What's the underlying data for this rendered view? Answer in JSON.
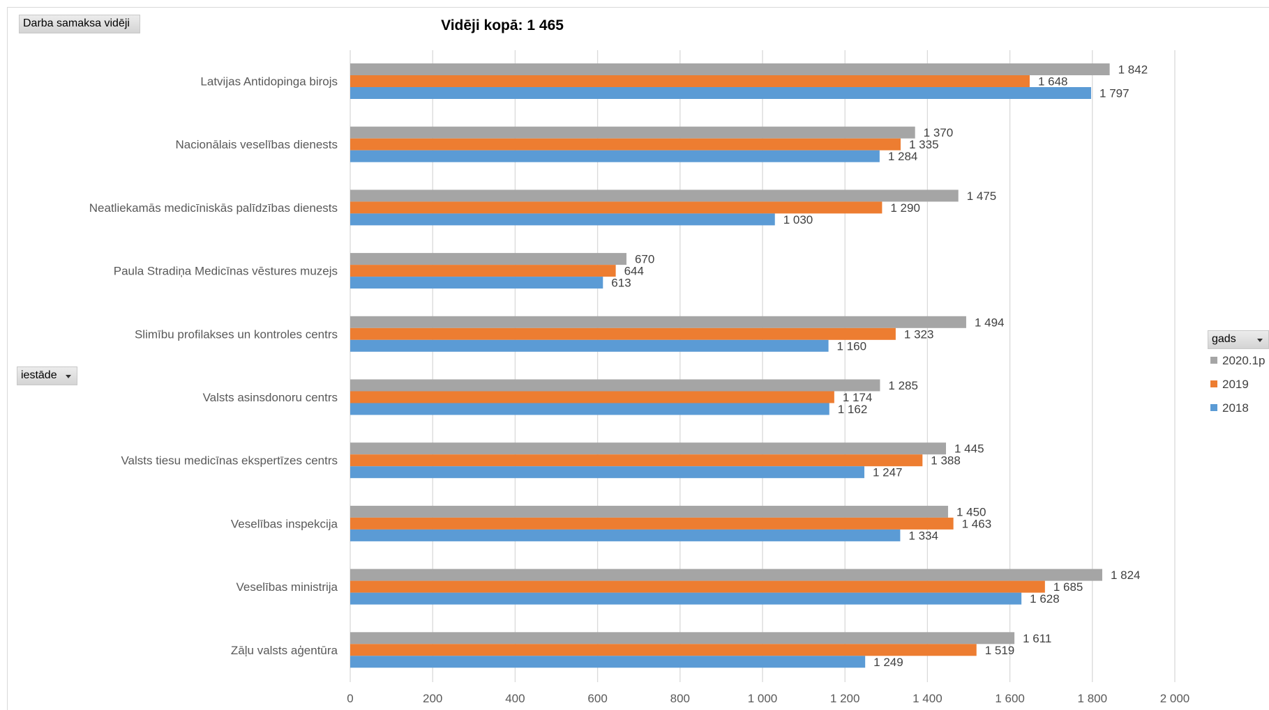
{
  "pivot": {
    "measure_label": "Darba samaksa vidēji",
    "category_field_label": "iestāde",
    "legend_field_label": "gads"
  },
  "chart_data": {
    "type": "bar",
    "orientation": "horizontal",
    "title": "Vidēji kopā: 1 465",
    "xlabel": "",
    "ylabel": "",
    "xlim": [
      0,
      2000
    ],
    "x_ticks": [
      0,
      200,
      400,
      600,
      800,
      1000,
      1200,
      1400,
      1600,
      1800,
      2000
    ],
    "x_tick_labels": [
      "0",
      "200",
      "400",
      "600",
      "800",
      "1 000",
      "1 200",
      "1 400",
      "1 600",
      "1 800",
      "2 000"
    ],
    "grid": "vertical",
    "legend_position": "right",
    "categories": [
      "Latvijas Antidopinga birojs",
      "Nacionālais veselības dienests",
      "Neatliekamās medicīniskās palīdzības dienests",
      "Paula Stradiņa Medicīnas vēstures muzejs",
      "Slimību profilakses un kontroles centrs",
      "Valsts asinsdonoru centrs",
      "Valsts tiesu medicīnas ekspertīzes centrs",
      "Veselības inspekcija",
      "Veselības ministrija",
      "Zāļu valsts aģentūra"
    ],
    "series": [
      {
        "name": "2020.1p",
        "color": "#a5a5a5",
        "values": [
          1842,
          1370,
          1475,
          670,
          1494,
          1285,
          1445,
          1450,
          1824,
          1611
        ],
        "labels": [
          "1 842",
          "1 370",
          "1 475",
          "670",
          "1 494",
          "1 285",
          "1 445",
          "1 450",
          "1 824",
          "1 611"
        ]
      },
      {
        "name": "2019",
        "color": "#ed7d31",
        "values": [
          1648,
          1335,
          1290,
          644,
          1323,
          1174,
          1388,
          1463,
          1685,
          1519
        ],
        "labels": [
          "1 648",
          "1 335",
          "1 290",
          "644",
          "1 323",
          "1 174",
          "1 388",
          "1 463",
          "1 685",
          "1 519"
        ]
      },
      {
        "name": "2018",
        "color": "#5b9bd5",
        "values": [
          1797,
          1284,
          1030,
          613,
          1160,
          1162,
          1247,
          1334,
          1628,
          1249
        ],
        "labels": [
          "1 797",
          "1 284",
          "1 030",
          "613",
          "1 160",
          "1 162",
          "1 247",
          "1 334",
          "1 628",
          "1 249"
        ]
      }
    ]
  }
}
